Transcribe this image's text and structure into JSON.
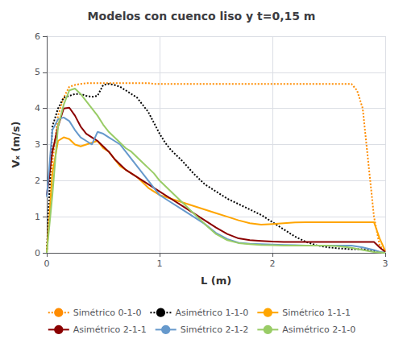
{
  "chart_data": {
    "type": "line",
    "title": "Modelos con cuenco liso y t=0,15 m",
    "xlabel": "L (m)",
    "ylabel": "Vₓ (m/s)",
    "xlim": [
      0,
      3
    ],
    "ylim": [
      0,
      6
    ],
    "xticks": [
      0,
      1,
      2,
      3
    ],
    "yticks": [
      0,
      1,
      2,
      3,
      4,
      5,
      6
    ],
    "grid": true,
    "legend": "bottom",
    "series": [
      {
        "name": "Simétrico 0-1-0",
        "color": "#FF8C00",
        "line_style": "dotted",
        "x": [
          0.0,
          0.05,
          0.1,
          0.15,
          0.2,
          0.25,
          0.3,
          0.35,
          0.4,
          0.45,
          0.5,
          0.55,
          0.6,
          0.65,
          0.7,
          0.75,
          0.8,
          0.85,
          0.9,
          0.95,
          1.0,
          1.1,
          1.2,
          1.3,
          1.4,
          1.5,
          1.6,
          1.7,
          1.8,
          1.9,
          2.0,
          2.1,
          2.2,
          2.3,
          2.4,
          2.5,
          2.6,
          2.7,
          2.75,
          2.8,
          2.85,
          2.9,
          2.95,
          3.0
        ],
        "values": [
          0.0,
          2.5,
          3.8,
          4.3,
          4.6,
          4.65,
          4.68,
          4.7,
          4.7,
          4.7,
          4.7,
          4.7,
          4.7,
          4.7,
          4.7,
          4.7,
          4.7,
          4.7,
          4.7,
          4.68,
          4.68,
          4.68,
          4.68,
          4.68,
          4.68,
          4.68,
          4.68,
          4.68,
          4.68,
          4.68,
          4.68,
          4.68,
          4.68,
          4.68,
          4.68,
          4.68,
          4.68,
          4.68,
          4.5,
          4.0,
          2.5,
          1.0,
          0.2,
          0.05
        ]
      },
      {
        "name": "Asimétrico 1-1-0",
        "color": "#000000",
        "line_style": "dotted",
        "x": [
          0.0,
          0.05,
          0.1,
          0.15,
          0.2,
          0.25,
          0.3,
          0.35,
          0.4,
          0.45,
          0.5,
          0.55,
          0.6,
          0.65,
          0.7,
          0.75,
          0.8,
          0.85,
          0.9,
          0.95,
          1.0,
          1.05,
          1.1,
          1.15,
          1.2,
          1.3,
          1.4,
          1.5,
          1.6,
          1.7,
          1.8,
          1.9,
          2.0,
          2.1,
          2.2,
          2.3,
          2.4,
          2.5,
          2.6,
          2.7,
          2.8,
          2.85,
          2.9,
          2.95,
          3.0
        ],
        "values": [
          0.0,
          3.5,
          4.0,
          4.3,
          4.35,
          4.4,
          4.4,
          4.35,
          4.32,
          4.35,
          4.65,
          4.68,
          4.65,
          4.6,
          4.5,
          4.4,
          4.3,
          4.1,
          3.9,
          3.6,
          3.3,
          3.05,
          2.85,
          2.7,
          2.55,
          2.2,
          1.9,
          1.7,
          1.5,
          1.35,
          1.2,
          1.05,
          0.85,
          0.65,
          0.45,
          0.3,
          0.2,
          0.15,
          0.12,
          0.1,
          0.1,
          0.08,
          0.05,
          0.02,
          0.0
        ]
      },
      {
        "name": "Simétrico 1-1-1",
        "color": "#FFA500",
        "line_style": "solid",
        "x": [
          0.0,
          0.05,
          0.1,
          0.15,
          0.2,
          0.25,
          0.3,
          0.35,
          0.4,
          0.45,
          0.5,
          0.55,
          0.6,
          0.65,
          0.7,
          0.75,
          0.8,
          0.85,
          0.9,
          0.95,
          1.0,
          1.1,
          1.2,
          1.3,
          1.4,
          1.5,
          1.6,
          1.7,
          1.8,
          1.9,
          2.0,
          2.1,
          2.2,
          2.3,
          2.4,
          2.5,
          2.6,
          2.7,
          2.8,
          2.85,
          2.9,
          2.95,
          3.0
        ],
        "values": [
          0.0,
          2.2,
          3.1,
          3.2,
          3.15,
          3.0,
          2.95,
          3.0,
          3.05,
          3.1,
          2.9,
          2.8,
          2.6,
          2.4,
          2.3,
          2.2,
          2.1,
          1.95,
          1.8,
          1.7,
          1.6,
          1.5,
          1.4,
          1.3,
          1.2,
          1.1,
          1.0,
          0.9,
          0.82,
          0.78,
          0.8,
          0.82,
          0.84,
          0.85,
          0.85,
          0.85,
          0.85,
          0.85,
          0.85,
          0.85,
          0.85,
          0.4,
          0.05
        ]
      },
      {
        "name": "Asimétrico 2-1-1",
        "color": "#8B0000",
        "line_style": "solid",
        "x": [
          0.0,
          0.05,
          0.1,
          0.15,
          0.2,
          0.25,
          0.3,
          0.35,
          0.4,
          0.45,
          0.5,
          0.55,
          0.6,
          0.65,
          0.7,
          0.75,
          0.8,
          0.85,
          0.9,
          0.95,
          1.0,
          1.1,
          1.2,
          1.3,
          1.4,
          1.5,
          1.6,
          1.7,
          1.8,
          1.9,
          2.0,
          2.1,
          2.2,
          2.3,
          2.4,
          2.5,
          2.6,
          2.7,
          2.8,
          2.85,
          2.9,
          2.95,
          3.0
        ],
        "values": [
          1.6,
          2.8,
          3.5,
          4.0,
          4.02,
          3.8,
          3.5,
          3.3,
          3.2,
          3.1,
          2.95,
          2.8,
          2.6,
          2.45,
          2.3,
          2.2,
          2.1,
          2.0,
          1.9,
          1.8,
          1.7,
          1.5,
          1.3,
          1.1,
          0.9,
          0.7,
          0.52,
          0.4,
          0.35,
          0.33,
          0.31,
          0.3,
          0.3,
          0.3,
          0.3,
          0.3,
          0.3,
          0.3,
          0.3,
          0.3,
          0.3,
          0.15,
          0.02
        ]
      },
      {
        "name": "Simétrico 2-1-2",
        "color": "#6699CC",
        "line_style": "solid",
        "x": [
          0.0,
          0.05,
          0.1,
          0.15,
          0.2,
          0.25,
          0.3,
          0.35,
          0.4,
          0.45,
          0.5,
          0.55,
          0.6,
          0.65,
          0.7,
          0.75,
          0.8,
          0.85,
          0.9,
          0.95,
          1.0,
          1.1,
          1.2,
          1.3,
          1.4,
          1.5,
          1.6,
          1.7,
          1.8,
          1.9,
          2.0,
          2.1,
          2.2,
          2.3,
          2.4,
          2.5,
          2.6,
          2.7,
          2.8,
          2.9,
          2.95,
          3.0
        ],
        "values": [
          1.55,
          3.4,
          3.7,
          3.75,
          3.65,
          3.4,
          3.2,
          3.1,
          3.0,
          3.35,
          3.3,
          3.2,
          3.1,
          3.0,
          2.8,
          2.6,
          2.4,
          2.2,
          2.0,
          1.8,
          1.6,
          1.4,
          1.2,
          1.0,
          0.8,
          0.55,
          0.38,
          0.28,
          0.25,
          0.24,
          0.23,
          0.22,
          0.21,
          0.2,
          0.2,
          0.2,
          0.2,
          0.2,
          0.15,
          0.08,
          0.03,
          0.0
        ]
      },
      {
        "name": "Asimétrico 2-1-0",
        "color": "#99CC66",
        "line_style": "solid",
        "x": [
          0.0,
          0.05,
          0.1,
          0.15,
          0.2,
          0.25,
          0.3,
          0.35,
          0.4,
          0.45,
          0.5,
          0.55,
          0.6,
          0.65,
          0.7,
          0.75,
          0.8,
          0.85,
          0.9,
          0.95,
          1.0,
          1.1,
          1.2,
          1.3,
          1.4,
          1.5,
          1.6,
          1.7,
          1.8,
          1.9,
          2.0,
          2.1,
          2.2,
          2.3,
          2.4,
          2.5,
          2.6,
          2.7,
          2.8,
          2.9,
          2.95,
          3.0
        ],
        "values": [
          0.0,
          1.6,
          3.5,
          4.1,
          4.5,
          4.55,
          4.4,
          4.2,
          4.0,
          3.8,
          3.55,
          3.35,
          3.2,
          3.05,
          2.9,
          2.8,
          2.65,
          2.5,
          2.35,
          2.2,
          2.0,
          1.7,
          1.4,
          1.1,
          0.8,
          0.52,
          0.35,
          0.27,
          0.24,
          0.22,
          0.21,
          0.2,
          0.2,
          0.2,
          0.2,
          0.2,
          0.18,
          0.14,
          0.08,
          0.02,
          0.01,
          0.0
        ]
      }
    ]
  }
}
